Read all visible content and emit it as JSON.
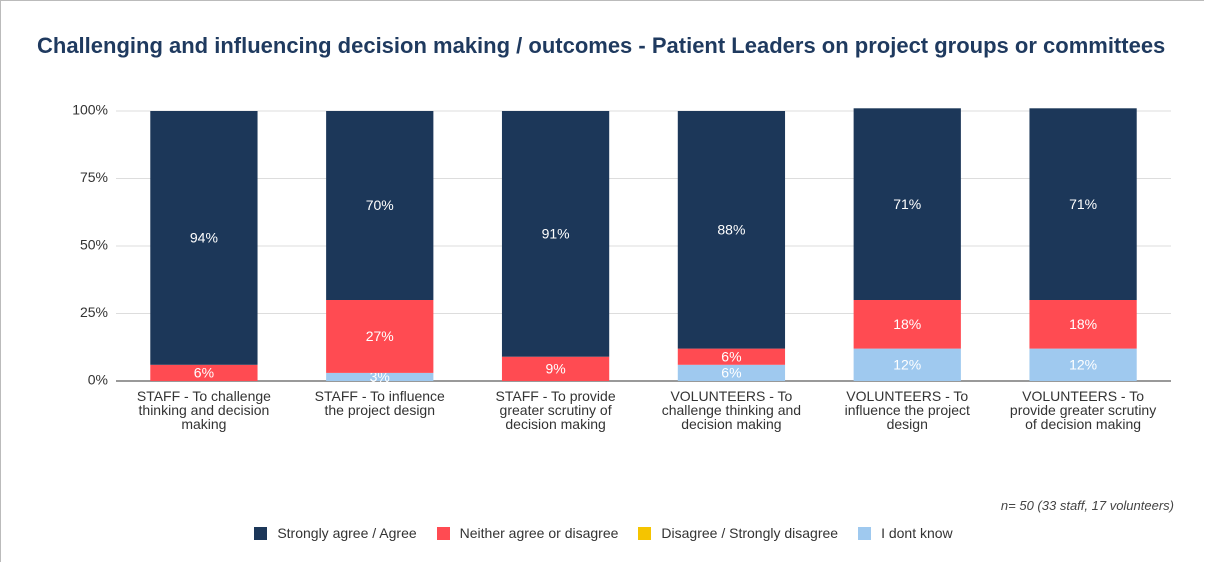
{
  "chart_data": {
    "type": "stacked_bar",
    "title": "Challenging and influencing decision making / outcomes -  Patient Leaders on project groups or committees",
    "note": "n= 50 (33 staff, 17 volunteers)",
    "categories": [
      "STAFF - To challenge thinking and decision making",
      "STAFF - To influence the project design",
      "STAFF - To provide greater scrutiny of decision making",
      "VOLUNTEERS - To challenge thinking and decision making",
      "VOLUNTEERS - To influence the project design",
      "VOLUNTEERS - To provide greater scrutiny of decision making"
    ],
    "series": [
      {
        "name": "Strongly agree / Agree",
        "color": "#1c3759",
        "values": [
          94,
          70,
          91,
          88,
          71,
          71
        ],
        "value_labels": [
          "94%",
          "70%",
          "91%",
          "88%",
          "71%",
          "71%"
        ]
      },
      {
        "name": "Neither agree or disagree",
        "color": "#ff4b52",
        "values": [
          6,
          27,
          9,
          6,
          18,
          18
        ],
        "value_labels": [
          "6%",
          "27%",
          "9%",
          "6%",
          "18%",
          "18%"
        ]
      },
      {
        "name": "Disagree / Strongly disagree",
        "color": "#f5c400",
        "values": [
          0,
          0,
          0,
          0,
          0,
          0
        ],
        "value_labels": [
          null,
          null,
          null,
          null,
          null,
          null
        ]
      },
      {
        "name": "I dont know",
        "color": "#9fc9ef",
        "values": [
          0,
          3,
          0,
          6,
          12,
          12
        ],
        "value_labels": [
          null,
          "3%",
          null,
          "6%",
          "12%",
          "12%"
        ]
      }
    ],
    "ylim": [
      0,
      100
    ],
    "yticks": [
      {
        "value": 0,
        "label": "0%"
      },
      {
        "value": 25,
        "label": "25%"
      },
      {
        "value": 50,
        "label": "50%"
      },
      {
        "value": 75,
        "label": "75%"
      },
      {
        "value": 100,
        "label": "100%"
      }
    ],
    "grid": true,
    "legend": "bottom"
  }
}
